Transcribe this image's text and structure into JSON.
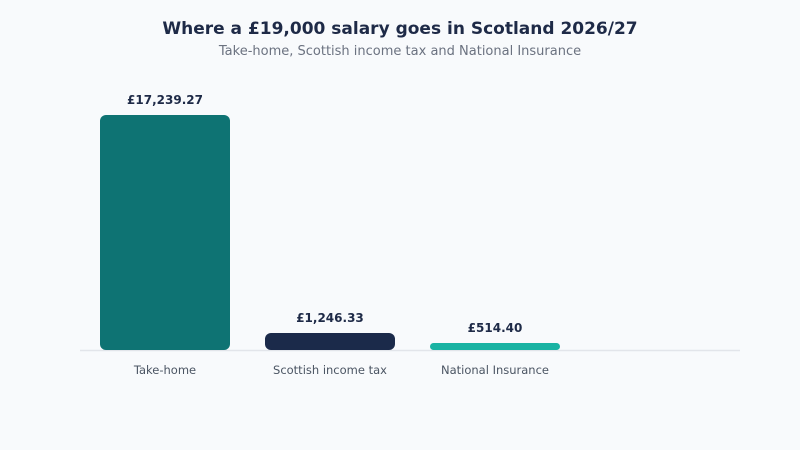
{
  "chart_data": {
    "type": "bar",
    "title": "Where a £19,000 salary goes in Scotland 2026/27",
    "subtitle": "Take-home, Scottish income tax and National Insurance",
    "categories": [
      "Take-home",
      "Scottish income tax",
      "National Insurance"
    ],
    "values": [
      17239.27,
      1246.33,
      514.4
    ],
    "value_labels": [
      "£17,239.27",
      "£1,246.33",
      "£514.40"
    ],
    "colors": [
      "#0e7373",
      "#1b2a4a",
      "#1ab3a3"
    ],
    "ylim": [
      0,
      17239.27
    ],
    "grid": false,
    "legend": "none",
    "xlabel": "",
    "ylabel": ""
  }
}
